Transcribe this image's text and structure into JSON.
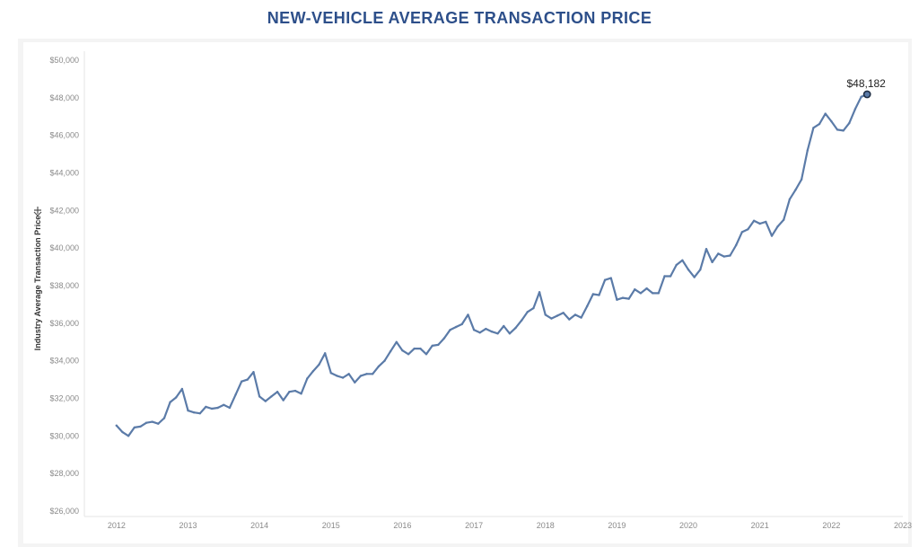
{
  "title": "NEW-VEHICLE AVERAGE TRANSACTION PRICE",
  "colors": {
    "title": "#2d4f8a",
    "line": "#5b7ba8",
    "marker": "#1f2e44"
  },
  "chart_data": {
    "type": "line",
    "title": "NEW-VEHICLE AVERAGE TRANSACTION PRICE",
    "xlabel": "",
    "ylabel": "Industry Average Transaction Price",
    "xlim": [
      2011.55,
      2023.0
    ],
    "ylim": [
      26000,
      50000
    ],
    "x_ticks": [
      2012,
      2013,
      2014,
      2015,
      2016,
      2017,
      2018,
      2019,
      2020,
      2021,
      2022,
      2023
    ],
    "x_tick_labels": [
      "2012",
      "2013",
      "2014",
      "2015",
      "2016",
      "2017",
      "2018",
      "2019",
      "2020",
      "2021",
      "2022",
      "2023"
    ],
    "y_ticks": [
      26000,
      28000,
      30000,
      32000,
      34000,
      36000,
      38000,
      40000,
      42000,
      44000,
      46000,
      48000,
      50000
    ],
    "y_tick_labels": [
      "$26,000",
      "$28,000",
      "$30,000",
      "$32,000",
      "$34,000",
      "$36,000",
      "$38,000",
      "$40,000",
      "$42,000",
      "$44,000",
      "$46,000",
      "$48,000",
      "$50,000"
    ],
    "grid": false,
    "annotation": {
      "label": "$48,182",
      "x": 2022.5,
      "y": 48182
    },
    "series": [
      {
        "x": [
          2012.0,
          2012.083,
          2012.167,
          2012.25,
          2012.333,
          2012.417,
          2012.5,
          2012.583,
          2012.667,
          2012.75,
          2012.833,
          2012.917,
          2013.0,
          2013.083,
          2013.167,
          2013.25,
          2013.333,
          2013.417,
          2013.5,
          2013.583,
          2013.667,
          2013.75,
          2013.833,
          2013.917,
          2014.0,
          2014.083,
          2014.167,
          2014.25,
          2014.333,
          2014.417,
          2014.5,
          2014.583,
          2014.667,
          2014.75,
          2014.833,
          2014.917,
          2015.0,
          2015.083,
          2015.167,
          2015.25,
          2015.333,
          2015.417,
          2015.5,
          2015.583,
          2015.667,
          2015.75,
          2015.833,
          2015.917,
          2016.0,
          2016.083,
          2016.167,
          2016.25,
          2016.333,
          2016.417,
          2016.5,
          2016.583,
          2016.667,
          2016.75,
          2016.833,
          2016.917,
          2017.0,
          2017.083,
          2017.167,
          2017.25,
          2017.333,
          2017.417,
          2017.5,
          2017.583,
          2017.667,
          2017.75,
          2017.833,
          2017.917,
          2018.0,
          2018.083,
          2018.167,
          2018.25,
          2018.333,
          2018.417,
          2018.5,
          2018.583,
          2018.667,
          2018.75,
          2018.833,
          2018.917,
          2019.0,
          2019.083,
          2019.167,
          2019.25,
          2019.333,
          2019.417,
          2019.5,
          2019.583,
          2019.667,
          2019.75,
          2019.833,
          2019.917,
          2020.0,
          2020.083,
          2020.167,
          2020.25,
          2020.333,
          2020.417,
          2020.5,
          2020.583,
          2020.667,
          2020.75,
          2020.833,
          2020.917,
          2021.0,
          2021.083,
          2021.167,
          2021.25,
          2021.333,
          2021.417,
          2021.5,
          2021.583,
          2021.667,
          2021.75,
          2021.833,
          2021.917,
          2022.0,
          2022.083,
          2022.167,
          2022.25,
          2022.333,
          2022.417,
          2022.5
        ],
        "y": [
          30550,
          30200,
          30000,
          30450,
          30500,
          30700,
          30750,
          30650,
          30950,
          31800,
          32050,
          32500,
          31350,
          31250,
          31200,
          31550,
          31450,
          31500,
          31650,
          31500,
          32200,
          32900,
          33000,
          33400,
          32100,
          31850,
          32100,
          32350,
          31900,
          32350,
          32400,
          32250,
          33050,
          33450,
          33800,
          34400,
          33350,
          33200,
          33100,
          33300,
          32850,
          33200,
          33300,
          33300,
          33700,
          34000,
          34500,
          35000,
          34550,
          34350,
          34650,
          34650,
          34350,
          34800,
          34850,
          35200,
          35650,
          35800,
          35950,
          36450,
          35650,
          35500,
          35700,
          35550,
          35450,
          35850,
          35450,
          35750,
          36150,
          36600,
          36800,
          37650,
          36450,
          36250,
          36400,
          36550,
          36200,
          36450,
          36300,
          36900,
          37550,
          37500,
          38300,
          38400,
          37250,
          37350,
          37300,
          37800,
          37600,
          37850,
          37600,
          37600,
          38500,
          38500,
          39100,
          39350,
          38850,
          38450,
          38850,
          39950,
          39250,
          39700,
          39550,
          39600,
          40150,
          40850,
          41000,
          41450,
          41300,
          41400,
          40650,
          41150,
          41500,
          42600,
          43100,
          43650,
          45200,
          46400,
          46600,
          47150,
          46750,
          46300,
          46250,
          46650,
          47400,
          48050,
          48182
        ]
      }
    ]
  }
}
